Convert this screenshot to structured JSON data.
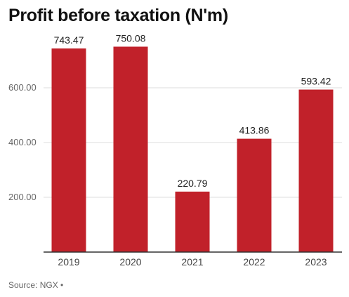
{
  "chart_data": {
    "type": "bar",
    "title": "Profit before taxation (N'm)",
    "categories": [
      "2019",
      "2020",
      "2021",
      "2022",
      "2023"
    ],
    "values": [
      743.47,
      750.08,
      220.79,
      413.86,
      593.42
    ],
    "value_labels": [
      "743.47",
      "750.08",
      "220.79",
      "413.86",
      "593.42"
    ],
    "yticks": [
      200,
      400,
      600
    ],
    "ytick_labels": [
      "200.00",
      "400.00",
      "600.00"
    ],
    "ylim": [
      0,
      800
    ],
    "grid": true,
    "bar_color": "#c1212a",
    "xlabel": "",
    "ylabel": ""
  },
  "source": "Source: NGX •"
}
